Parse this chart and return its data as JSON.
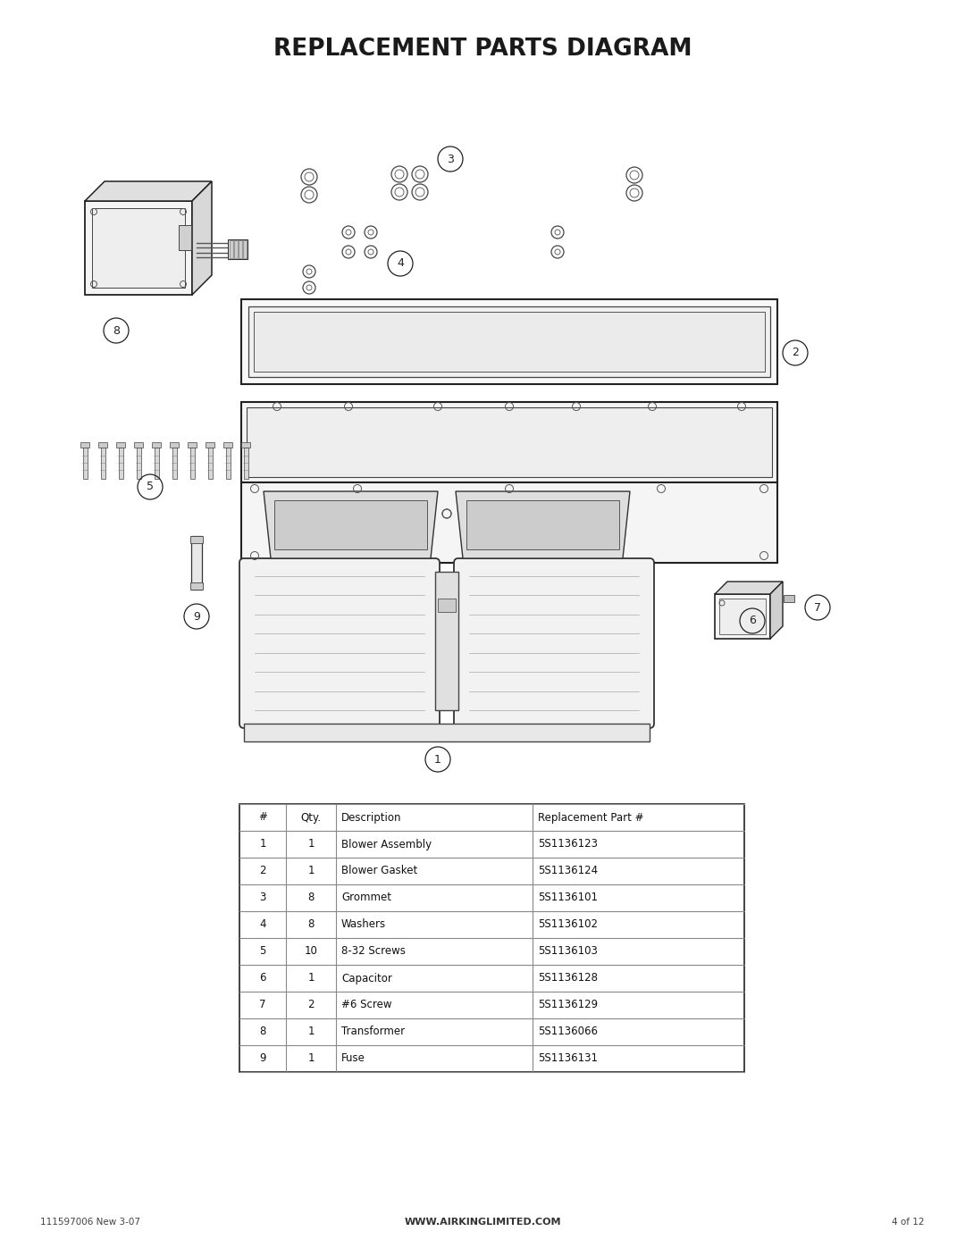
{
  "title": "REPLACEMENT PARTS DIAGRAM",
  "title_fontsize": 19,
  "title_weight": "bold",
  "background_color": "#ffffff",
  "text_color": "#1a1a1a",
  "footer_left": "111597006 New 3-07",
  "footer_center": "WWW.AIRKINGLIMITED.COM",
  "footer_right": "4 of 12",
  "table_headers": [
    "#",
    "Qty.",
    "Description",
    "Replacement Part #"
  ],
  "table_rows": [
    [
      "1",
      "1",
      "Blower Assembly",
      "5S1136123"
    ],
    [
      "2",
      "1",
      "Blower Gasket",
      "5S1136124"
    ],
    [
      "3",
      "8",
      "Grommet",
      "5S1136101"
    ],
    [
      "4",
      "8",
      "Washers",
      "5S1136102"
    ],
    [
      "5",
      "10",
      "8-32 Screws",
      "5S1136103"
    ],
    [
      "6",
      "1",
      "Capacitor",
      "5S1136128"
    ],
    [
      "7",
      "2",
      "#6 Screw",
      "5S1136129"
    ],
    [
      "8",
      "1",
      "Transformer",
      "5S1136066"
    ],
    [
      "9",
      "1",
      "Fuse",
      "5S1136131"
    ]
  ]
}
